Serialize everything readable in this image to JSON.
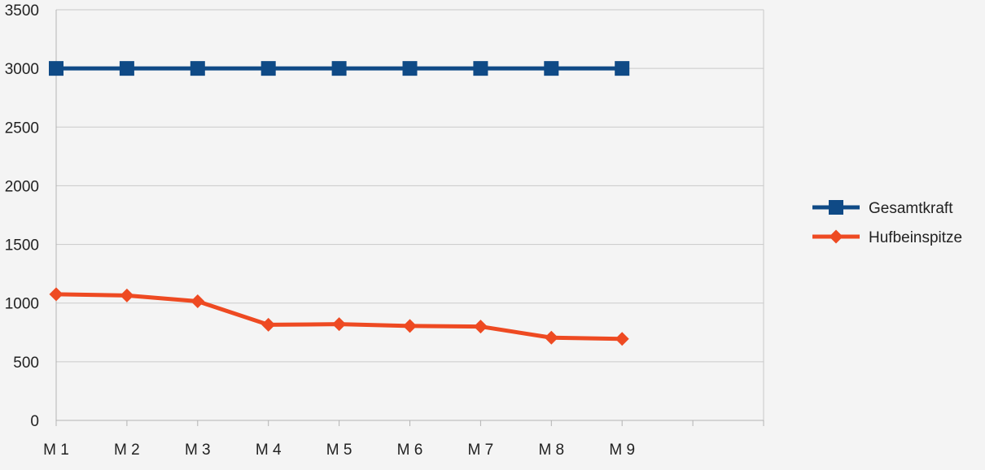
{
  "chart_data": {
    "type": "line",
    "title": "",
    "xlabel": "",
    "ylabel": "",
    "categories": [
      "M 1",
      "M 2",
      "M 3",
      "M 4",
      "M 5",
      "M 6",
      "M 7",
      "M 8",
      "M 9"
    ],
    "ylim": [
      0,
      3500
    ],
    "yticks": [
      0,
      500,
      1000,
      1500,
      2000,
      2500,
      3000,
      3500
    ],
    "grid": true,
    "legend_position": "right",
    "series": [
      {
        "name": "Gesamtkraft",
        "color": "#0f4a86",
        "marker": "square",
        "values": [
          3000,
          3000,
          3000,
          3000,
          3000,
          3000,
          3000,
          3000,
          3000
        ]
      },
      {
        "name": "Hufbeinspitze",
        "color": "#ee4a22",
        "marker": "diamond",
        "values": [
          1075,
          1065,
          1015,
          815,
          820,
          805,
          800,
          705,
          695
        ]
      }
    ]
  }
}
